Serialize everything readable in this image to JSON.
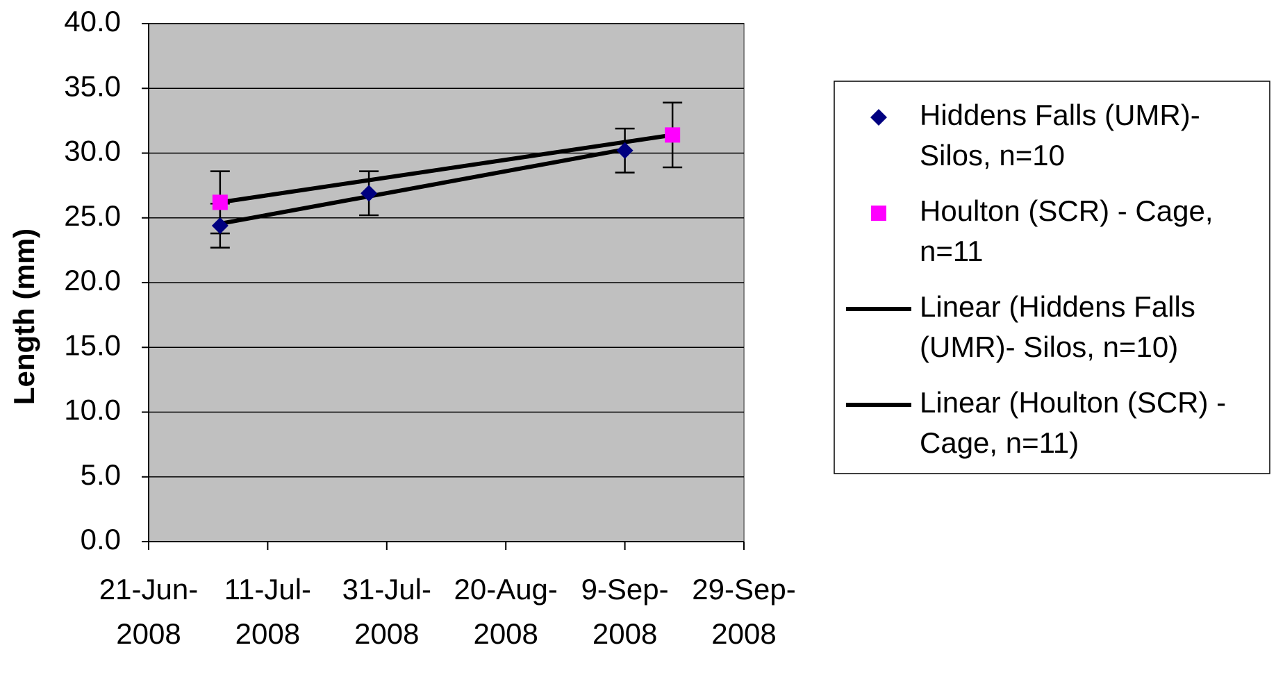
{
  "chart_data": {
    "type": "scatter",
    "y_label": "Length (mm)",
    "xlim": [
      "2008-06-21",
      "2008-09-29"
    ],
    "xticks": [
      {
        "value": "2008-06-21",
        "label": "21-Jun-2008"
      },
      {
        "value": "2008-07-11",
        "label": "11-Jul-2008"
      },
      {
        "value": "2008-07-31",
        "label": "31-Jul-2008"
      },
      {
        "value": "2008-08-20",
        "label": "20-Aug-2008"
      },
      {
        "value": "2008-09-09",
        "label": "9-Sep-2008"
      },
      {
        "value": "2008-09-29",
        "label": "29-Sep-2008"
      }
    ],
    "ylim": [
      0,
      40
    ],
    "yticks": [
      {
        "value": 0,
        "label": "0.0"
      },
      {
        "value": 5,
        "label": "5.0"
      },
      {
        "value": 10,
        "label": "10.0"
      },
      {
        "value": 15,
        "label": "15.0"
      },
      {
        "value": 20,
        "label": "20.0"
      },
      {
        "value": 25,
        "label": "25.0"
      },
      {
        "value": 30,
        "label": "30.0"
      },
      {
        "value": 35,
        "label": "35.0"
      },
      {
        "value": 40,
        "label": "40.0"
      }
    ],
    "grid": true,
    "legend": "right",
    "plot_background": "#c0c0c0",
    "series": [
      {
        "name": "Hiddens Falls (UMR)- Silos, n=10",
        "color": "#000080",
        "marker": "diamond",
        "x": [
          "2008-07-03",
          "2008-07-28",
          "2008-09-09"
        ],
        "values": [
          24.4,
          26.9,
          30.2
        ],
        "errors": [
          1.7,
          1.7,
          1.7
        ],
        "trendline": {
          "name": "Linear (Hiddens Falls (UMR)- Silos, n=10)",
          "color": "#000000"
        }
      },
      {
        "name": "Houlton (SCR) - Cage, n=11",
        "color": "#ff00ff",
        "marker": "square",
        "x": [
          "2008-07-03",
          "2008-09-17"
        ],
        "values": [
          26.2,
          31.4
        ],
        "errors": [
          2.4,
          2.5
        ],
        "trendline": {
          "name": "Linear (Houlton (SCR) - Cage, n=11)",
          "color": "#000000"
        }
      }
    ]
  }
}
